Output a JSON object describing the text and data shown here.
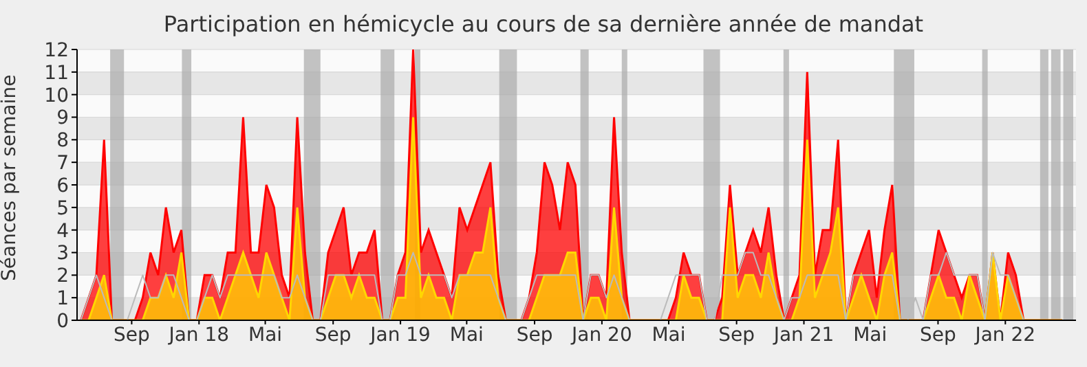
{
  "chart_data": {
    "type": "area",
    "title": "Participation en hémicycle au cours de sa dernière année de mandat",
    "ylabel": "Séances par semaine",
    "x": [
      "2017-06-01",
      "2017-06-15",
      "2017-06-29",
      "2017-07-13",
      "2017-07-27",
      "2017-08-10",
      "2017-08-24",
      "2017-09-07",
      "2017-09-21",
      "2017-10-05",
      "2017-10-19",
      "2017-11-02",
      "2017-11-16",
      "2017-11-30",
      "2017-12-14",
      "2017-12-28",
      "2018-01-11",
      "2018-01-25",
      "2018-02-08",
      "2018-02-22",
      "2018-03-08",
      "2018-03-22",
      "2018-04-05",
      "2018-04-19",
      "2018-05-03",
      "2018-05-17",
      "2018-05-31",
      "2018-06-14",
      "2018-06-28",
      "2018-07-12",
      "2018-07-26",
      "2018-08-09",
      "2018-08-23",
      "2018-09-06",
      "2018-09-20",
      "2018-10-04",
      "2018-10-18",
      "2018-11-01",
      "2018-11-15",
      "2018-11-29",
      "2018-12-13",
      "2018-12-27",
      "2019-01-10",
      "2019-01-24",
      "2019-02-07",
      "2019-02-21",
      "2019-03-07",
      "2019-03-21",
      "2019-04-04",
      "2019-04-18",
      "2019-05-02",
      "2019-05-16",
      "2019-05-30",
      "2019-06-13",
      "2019-06-27",
      "2019-07-11",
      "2019-07-25",
      "2019-08-08",
      "2019-08-22",
      "2019-09-05",
      "2019-09-19",
      "2019-10-03",
      "2019-10-17",
      "2019-10-31",
      "2019-11-14",
      "2019-11-28",
      "2019-12-12",
      "2019-12-26",
      "2020-01-09",
      "2020-01-23",
      "2020-02-06",
      "2020-02-20",
      "2020-03-05",
      "2020-03-19",
      "2020-04-02",
      "2020-04-16",
      "2020-04-30",
      "2020-05-14",
      "2020-05-28",
      "2020-06-11",
      "2020-06-25",
      "2020-07-09",
      "2020-07-23",
      "2020-08-06",
      "2020-08-20",
      "2020-09-03",
      "2020-09-17",
      "2020-10-01",
      "2020-10-15",
      "2020-10-29",
      "2020-11-12",
      "2020-11-26",
      "2020-12-10",
      "2020-12-24",
      "2021-01-07",
      "2021-01-21",
      "2021-02-04",
      "2021-02-18",
      "2021-03-04",
      "2021-03-18",
      "2021-04-01",
      "2021-04-15",
      "2021-04-29",
      "2021-05-13",
      "2021-05-27",
      "2021-06-10",
      "2021-06-24",
      "2021-07-08",
      "2021-07-22",
      "2021-08-05",
      "2021-08-19",
      "2021-09-02",
      "2021-09-16",
      "2021-09-30",
      "2021-10-14",
      "2021-10-28",
      "2021-11-11",
      "2021-11-25",
      "2021-12-09",
      "2021-12-23",
      "2022-01-06",
      "2022-01-20",
      "2022-02-03",
      "2022-02-17",
      "2022-03-03",
      "2022-03-17",
      "2022-03-31",
      "2022-04-14"
    ],
    "series": [
      {
        "type": "line",
        "color": "#bbbbbb",
        "values": [
          0,
          1,
          2,
          1,
          0,
          0,
          0,
          1,
          2,
          1,
          1,
          2,
          2,
          1,
          0,
          0,
          1,
          2,
          1,
          2,
          2,
          2,
          2,
          2,
          2,
          2,
          1,
          1,
          2,
          1,
          0,
          0,
          2,
          2,
          2,
          2,
          2,
          2,
          2,
          0,
          0,
          2,
          2,
          3,
          2,
          2,
          2,
          2,
          1,
          2,
          2,
          2,
          2,
          2,
          1,
          0,
          0,
          0,
          1,
          2,
          2,
          2,
          2,
          2,
          2,
          0,
          2,
          2,
          1,
          2,
          1,
          0,
          0,
          0,
          0,
          0,
          1,
          2,
          2,
          2,
          2,
          0,
          0,
          2,
          2,
          2,
          3,
          3,
          2,
          2,
          1,
          0,
          1,
          1,
          2,
          2,
          2,
          2,
          2,
          0,
          2,
          2,
          2,
          2,
          2,
          2,
          0,
          0,
          1,
          0,
          2,
          2,
          3,
          2,
          2,
          2,
          2,
          0,
          3,
          2,
          2,
          1,
          0,
          0,
          0,
          0,
          0,
          0
        ]
      },
      {
        "color": "#ff0000",
        "values": [
          0,
          1,
          2,
          8,
          0,
          0,
          0,
          0,
          1,
          3,
          2,
          5,
          3,
          4,
          0,
          0,
          2,
          2,
          1,
          3,
          3,
          9,
          3,
          3,
          6,
          5,
          2,
          1,
          9,
          3,
          0,
          0,
          3,
          4,
          5,
          2,
          3,
          3,
          4,
          0,
          0,
          2,
          3,
          12,
          3,
          4,
          3,
          2,
          1,
          5,
          4,
          5,
          6,
          7,
          2,
          0,
          0,
          0,
          1,
          3,
          7,
          6,
          4,
          7,
          6,
          0,
          2,
          2,
          1,
          9,
          3,
          0,
          0,
          0,
          0,
          0,
          0,
          1,
          3,
          2,
          2,
          0,
          0,
          1,
          6,
          2,
          3,
          4,
          3,
          5,
          2,
          0,
          1,
          2,
          11,
          2,
          4,
          4,
          8,
          0,
          2,
          3,
          4,
          1,
          4,
          6,
          0,
          0,
          0,
          0,
          2,
          4,
          3,
          2,
          1,
          2,
          2,
          0,
          3,
          0,
          3,
          2,
          0,
          0,
          0,
          0,
          0,
          0
        ]
      },
      {
        "color": "#ffd700",
        "values": [
          0,
          0,
          1,
          2,
          0,
          0,
          0,
          0,
          0,
          1,
          1,
          2,
          1,
          3,
          0,
          0,
          1,
          1,
          0,
          1,
          2,
          3,
          2,
          1,
          3,
          2,
          1,
          0,
          5,
          1,
          0,
          0,
          1,
          2,
          2,
          1,
          2,
          1,
          1,
          0,
          0,
          1,
          1,
          9,
          1,
          2,
          1,
          1,
          0,
          2,
          2,
          3,
          3,
          5,
          1,
          0,
          0,
          0,
          0,
          1,
          2,
          2,
          2,
          3,
          3,
          0,
          1,
          1,
          0,
          5,
          1,
          0,
          0,
          0,
          0,
          0,
          0,
          0,
          2,
          1,
          1,
          0,
          0,
          0,
          5,
          1,
          2,
          2,
          1,
          3,
          1,
          0,
          0,
          1,
          8,
          1,
          2,
          3,
          5,
          0,
          1,
          2,
          1,
          0,
          2,
          3,
          0,
          0,
          0,
          0,
          1,
          2,
          1,
          1,
          0,
          2,
          1,
          0,
          3,
          0,
          2,
          1,
          0,
          0,
          0,
          0,
          0,
          0
        ]
      }
    ],
    "xlim": [
      "2017-05-25",
      "2022-05-09"
    ],
    "xticks": [
      {
        "value": "2017-09-01",
        "label": "Sep"
      },
      {
        "value": "2018-01-01",
        "label": "Jan 18"
      },
      {
        "value": "2018-05-01",
        "label": "Mai"
      },
      {
        "value": "2018-09-01",
        "label": "Sep"
      },
      {
        "value": "2019-01-01",
        "label": "Jan 19"
      },
      {
        "value": "2019-05-01",
        "label": "Mai"
      },
      {
        "value": "2019-09-01",
        "label": "Sep"
      },
      {
        "value": "2020-01-01",
        "label": "Jan 20"
      },
      {
        "value": "2020-05-01",
        "label": "Mai"
      },
      {
        "value": "2020-09-01",
        "label": "Sep"
      },
      {
        "value": "2021-01-01",
        "label": "Jan 21"
      },
      {
        "value": "2021-05-01",
        "label": "Mai"
      },
      {
        "value": "2021-09-01",
        "label": "Sep"
      },
      {
        "value": "2022-01-01",
        "label": "Jan 22"
      }
    ],
    "ylim": [
      0,
      12
    ],
    "yticks": [
      0,
      1,
      2,
      3,
      4,
      5,
      6,
      7,
      8,
      9,
      10,
      11,
      12
    ],
    "grid": "y",
    "bands": [
      {
        "axis": "x",
        "from": "2017-07-24",
        "to": "2017-08-18",
        "color": "#aaaaaa"
      },
      {
        "axis": "x",
        "from": "2017-12-01",
        "to": "2017-12-18",
        "color": "#aaaaaa"
      },
      {
        "axis": "x",
        "from": "2018-07-10",
        "to": "2018-08-09",
        "color": "#aaaaaa"
      },
      {
        "axis": "x",
        "from": "2018-11-26",
        "to": "2018-12-21",
        "color": "#aaaaaa"
      },
      {
        "axis": "x",
        "from": "2019-01-27",
        "to": "2019-02-06",
        "color": "#aaaaaa"
      },
      {
        "axis": "x",
        "from": "2019-06-29",
        "to": "2019-07-31",
        "color": "#aaaaaa"
      },
      {
        "axis": "x",
        "from": "2019-11-23",
        "to": "2019-12-08",
        "color": "#aaaaaa"
      },
      {
        "axis": "x",
        "from": "2020-02-06",
        "to": "2020-02-16",
        "color": "#aaaaaa"
      },
      {
        "axis": "x",
        "from": "2020-07-03",
        "to": "2020-08-02",
        "color": "#aaaaaa"
      },
      {
        "axis": "x",
        "from": "2020-11-25",
        "to": "2020-12-05",
        "color": "#aaaaaa"
      },
      {
        "axis": "x",
        "from": "2021-06-13",
        "to": "2021-07-20",
        "color": "#aaaaaa"
      },
      {
        "axis": "x",
        "from": "2021-11-20",
        "to": "2021-11-30",
        "color": "#aaaaaa"
      },
      {
        "axis": "x",
        "from": "2022-03-05",
        "to": "2022-03-20",
        "color": "#aaaaaa"
      },
      {
        "axis": "x",
        "from": "2022-03-25",
        "to": "2022-04-11",
        "color": "#aaaaaa"
      },
      {
        "axis": "x",
        "from": "2022-04-16",
        "to": "2022-05-04",
        "color": "#aaaaaa"
      }
    ]
  }
}
